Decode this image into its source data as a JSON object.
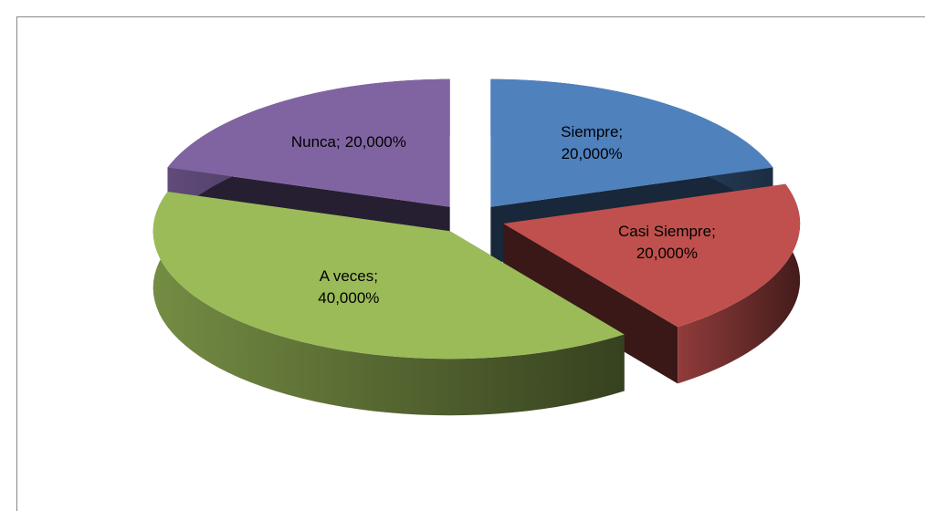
{
  "chart_data": {
    "type": "pie",
    "pie_style": "3d-exploded",
    "categories": [
      "Siempre",
      "Casi Siempre",
      "A veces",
      "Nunca"
    ],
    "values": [
      20,
      20,
      40,
      20
    ],
    "value_labels": [
      "20,000%",
      "20,000%",
      "40,000%",
      "20,000%"
    ],
    "label_separator": ";",
    "colors": [
      "#4f81bd",
      "#c0504d",
      "#9bbb59",
      "#8064a2"
    ]
  }
}
